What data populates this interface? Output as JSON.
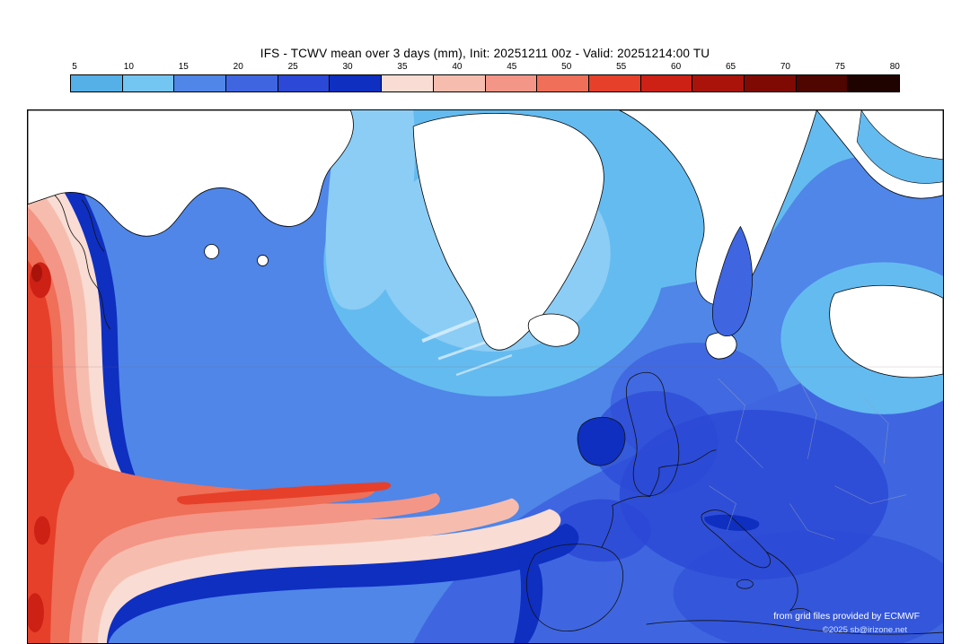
{
  "header": {
    "title": "IFS - TCWV mean over 3 days (mm), Init: 20251211 00z - Valid: 20251214:00 TU"
  },
  "colorbar": {
    "tick_labels": [
      "5",
      "10",
      "15",
      "20",
      "25",
      "30",
      "35",
      "40",
      "45",
      "50",
      "55",
      "60",
      "65",
      "70",
      "75",
      "80"
    ],
    "colors": [
      "#55b0e8",
      "#74c6f2",
      "#4f86e8",
      "#3f66e0",
      "#2b49d6",
      "#0f2fc0",
      "#f9dcd3",
      "#f6bdae",
      "#f39687",
      "#ef6f58",
      "#e6402a",
      "#cd2115",
      "#a9130a",
      "#7f0a04",
      "#4f0500",
      "#1e0300"
    ]
  },
  "map": {
    "credit_line1": "from grid files provided by ECMWF",
    "credit_line2": "©2025 sb@irizone.net"
  },
  "chart_data": {
    "type": "heatmap",
    "title": "IFS - TCWV mean over 3 days (mm), Init: 20251211 00z - Valid: 20251214:00 TU",
    "units": "mm",
    "scale_ticks": [
      5,
      10,
      15,
      20,
      25,
      30,
      35,
      40,
      45,
      50,
      55,
      60,
      65,
      70,
      75,
      80
    ],
    "scale_colors": [
      "#55b0e8",
      "#74c6f2",
      "#4f86e8",
      "#3f66e0",
      "#2b49d6",
      "#0f2fc0",
      "#f9dcd3",
      "#f6bdae",
      "#f39687",
      "#ef6f58",
      "#e6402a",
      "#cd2115",
      "#a9130a",
      "#7f0a04",
      "#4f0500",
      "#1e0300"
    ],
    "legend_position": "top"
  }
}
